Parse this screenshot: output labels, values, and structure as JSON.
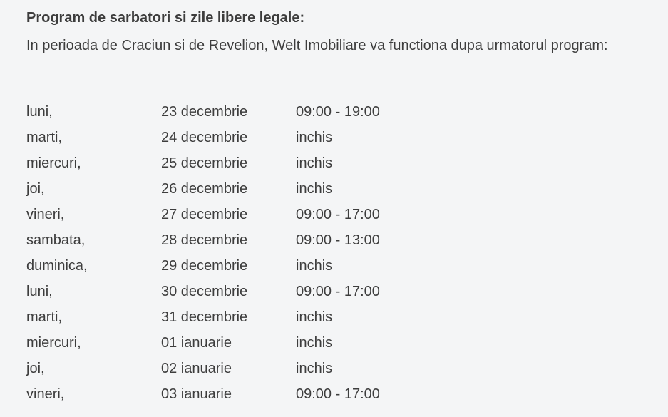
{
  "title": "Program de sarbatori si zile libere legale:",
  "intro": "In perioada de Craciun si de Revelion, Welt Imobiliare va functiona dupa urmatorul program:",
  "schedule": [
    {
      "day": "luni,",
      "date": "23 decembrie",
      "hours": "09:00 - 19:00"
    },
    {
      "day": "marti,",
      "date": "24 decembrie",
      "hours": "inchis"
    },
    {
      "day": "miercuri,",
      "date": "25 decembrie",
      "hours": "inchis"
    },
    {
      "day": "joi,",
      "date": "26 decembrie",
      "hours": "inchis"
    },
    {
      "day": "vineri,",
      "date": "27 decembrie",
      "hours": "09:00 - 17:00"
    },
    {
      "day": "sambata,",
      "date": "28 decembrie",
      "hours": "09:00 - 13:00"
    },
    {
      "day": "duminica,",
      "date": "29 decembrie",
      "hours": "inchis"
    },
    {
      "day": "luni,",
      "date": "30 decembrie",
      "hours": "09:00 - 17:00"
    },
    {
      "day": "marti,",
      "date": "31 decembrie",
      "hours": "inchis"
    },
    {
      "day": "miercuri,",
      "date": "01 ianuarie",
      "hours": "inchis"
    },
    {
      "day": "joi,",
      "date": "02 ianuarie",
      "hours": "inchis"
    },
    {
      "day": "vineri,",
      "date": "03 ianuarie",
      "hours": "09:00 - 17:00"
    }
  ]
}
